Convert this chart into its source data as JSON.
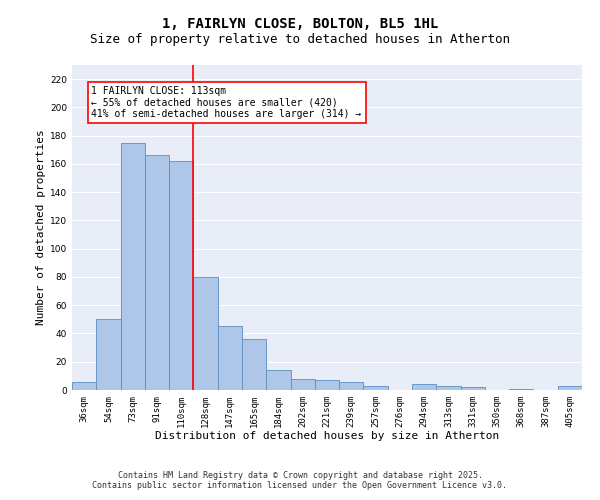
{
  "title": "1, FAIRLYN CLOSE, BOLTON, BL5 1HL",
  "subtitle": "Size of property relative to detached houses in Atherton",
  "xlabel": "Distribution of detached houses by size in Atherton",
  "ylabel": "Number of detached properties",
  "categories": [
    "36sqm",
    "54sqm",
    "73sqm",
    "91sqm",
    "110sqm",
    "128sqm",
    "147sqm",
    "165sqm",
    "184sqm",
    "202sqm",
    "221sqm",
    "239sqm",
    "257sqm",
    "276sqm",
    "294sqm",
    "313sqm",
    "331sqm",
    "350sqm",
    "368sqm",
    "387sqm",
    "405sqm"
  ],
  "values": [
    6,
    50,
    175,
    166,
    162,
    80,
    45,
    36,
    14,
    8,
    7,
    6,
    3,
    0,
    4,
    3,
    2,
    0,
    1,
    0,
    3
  ],
  "bar_color": "#aec6e8",
  "bar_edge_color": "#5a8fc2",
  "background_color": "#e8edf8",
  "grid_color": "#ffffff",
  "red_line_x": 4.5,
  "annotation_text": "1 FAIRLYN CLOSE: 113sqm\n← 55% of detached houses are smaller (420)\n41% of semi-detached houses are larger (314) →",
  "property_size": 113,
  "ylim": [
    0,
    230
  ],
  "yticks": [
    0,
    20,
    40,
    60,
    80,
    100,
    120,
    140,
    160,
    180,
    200,
    220
  ],
  "footer_line1": "Contains HM Land Registry data © Crown copyright and database right 2025.",
  "footer_line2": "Contains public sector information licensed under the Open Government Licence v3.0.",
  "title_fontsize": 10,
  "subtitle_fontsize": 9,
  "xlabel_fontsize": 8,
  "ylabel_fontsize": 8,
  "tick_fontsize": 6.5,
  "annotation_fontsize": 7,
  "footer_fontsize": 6
}
